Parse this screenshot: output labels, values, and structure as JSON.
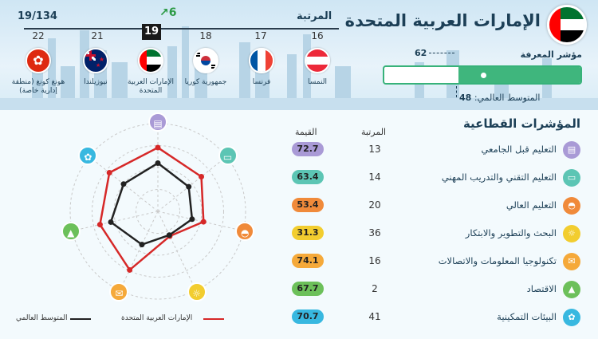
{
  "header": {
    "country": "الإمارات العربية المتحدة",
    "rank_label": "المرتبة",
    "rank_total": "19/134",
    "rank_change": "6",
    "knowledge_index_label": "مؤشر المعرفة",
    "knowledge_index_value": "62",
    "global_avg_label": "المتوسط العالمي:",
    "global_avg_value": "48",
    "knowledge_index_fraction": 0.62,
    "global_avg_fraction": 0.48
  },
  "ranking": [
    {
      "rank": "22",
      "name": "هونغ كونغ (منطقة إدارية خاصة)"
    },
    {
      "rank": "21",
      "name": "نيوزيلندا"
    },
    {
      "rank": "19",
      "name": "الإمارات العربية المتحدة"
    },
    {
      "rank": "18",
      "name": "جمهورية كوريا"
    },
    {
      "rank": "17",
      "name": "فرنسا"
    },
    {
      "rank": "16",
      "name": "النمسا"
    }
  ],
  "sectors": {
    "title": "المؤشرات القطاعية",
    "rank_header": "المرتبة",
    "value_header": "القيمة",
    "rows": [
      {
        "label": "التعليم قبل الجامعي",
        "rank": "13",
        "value": "72.7",
        "color": "#a99ad6"
      },
      {
        "label": "التعليم التقني والتدريب المهني",
        "rank": "14",
        "value": "63.4",
        "color": "#5cc5b4"
      },
      {
        "label": "التعليم العالي",
        "rank": "20",
        "value": "53.4",
        "color": "#f08a3a"
      },
      {
        "label": "البحث والتطوير والابتكار",
        "rank": "36",
        "value": "31.3",
        "color": "#f2cd2f"
      },
      {
        "label": "تكنولوجيا المعلومات والاتصالات",
        "rank": "16",
        "value": "74.1",
        "color": "#f5a93a"
      },
      {
        "label": "الاقتصاد",
        "rank": "2",
        "value": "67.7",
        "color": "#6cc05a"
      },
      {
        "label": "البيئات التمكينية",
        "rank": "41",
        "value": "70.7",
        "color": "#38b8e0"
      }
    ]
  },
  "radar": {
    "uae": [
      72.7,
      63.4,
      53.4,
      31.3,
      74.1,
      67.7,
      70.7
    ],
    "world": [
      55,
      45,
      40,
      30,
      42,
      55,
      50
    ],
    "uae_color": "#d62828",
    "world_color": "#222222"
  },
  "legend": {
    "uae": "الإمارات العربية المتحدة",
    "world": "المتوسط العالمي"
  }
}
